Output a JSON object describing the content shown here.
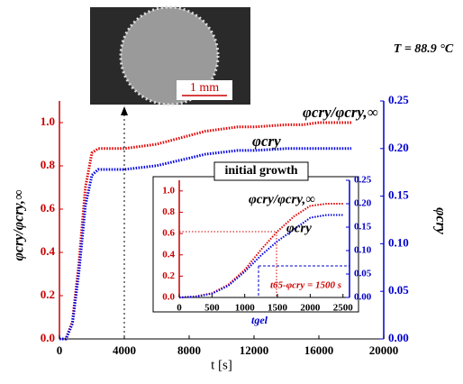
{
  "chart_data": [
    {
      "type": "line",
      "xlabel": "t [s]",
      "ylabel": "φcry/φcry,∞",
      "y2label": "φcry",
      "annotations": [
        "T = 88.9 °C",
        "1 mm"
      ],
      "x": [
        0,
        400,
        800,
        1200,
        1600,
        2000,
        2400,
        3000,
        4000,
        5000,
        6000,
        7000,
        8000,
        9000,
        10000,
        11000,
        12000,
        13000,
        14000,
        15000,
        16000,
        17000,
        18000
      ],
      "series": [
        {
          "name": "φcry/φcry,∞",
          "color": "#e00000",
          "axis": "y",
          "values": [
            0,
            0,
            0.08,
            0.35,
            0.7,
            0.86,
            0.88,
            0.88,
            0.88,
            0.89,
            0.9,
            0.92,
            0.94,
            0.96,
            0.97,
            0.98,
            0.98,
            0.985,
            0.99,
            0.99,
            1.0,
            1.0,
            1.0
          ]
        },
        {
          "name": "φcry",
          "color": "#0000e0",
          "axis": "y2",
          "values": [
            0,
            0,
            0.016,
            0.07,
            0.14,
            0.172,
            0.178,
            0.178,
            0.178,
            0.18,
            0.182,
            0.186,
            0.19,
            0.194,
            0.196,
            0.198,
            0.198,
            0.199,
            0.2,
            0.2,
            0.2,
            0.2,
            0.2
          ]
        }
      ],
      "xlim": [
        0,
        20000
      ],
      "xticks": [
        0,
        4000,
        8000,
        12000,
        16000,
        20000
      ],
      "ylim": [
        0,
        1.1
      ],
      "yticks": [
        {
          "value": 0,
          "label": "0.0"
        },
        {
          "value": 0.2,
          "label": "0.2"
        },
        {
          "value": 0.4,
          "label": "0.4"
        },
        {
          "value": 0.6,
          "label": "0.6"
        },
        {
          "value": 0.8,
          "label": "0.8"
        },
        {
          "value": 1,
          "label": "1.0"
        }
      ],
      "y2lim": [
        0,
        0.25
      ],
      "y2ticks": [
        {
          "value": 0,
          "label": "0.00"
        },
        {
          "value": 0.05,
          "label": "0.05"
        },
        {
          "value": 0.1,
          "label": "0.10"
        },
        {
          "value": 0.15,
          "label": "0.15"
        },
        {
          "value": 0.2,
          "label": "0.20"
        },
        {
          "value": 0.25,
          "label": "0.25"
        }
      ]
    },
    {
      "type": "line",
      "title": "initial growth",
      "annotations": [
        "t65-φcry = 1500 s",
        "tgel"
      ],
      "x": [
        0,
        250,
        500,
        750,
        1000,
        1250,
        1500,
        1750,
        2000,
        2250,
        2500
      ],
      "series": [
        {
          "name": "φcry/φcry,∞",
          "color": "#e00000",
          "axis": "y",
          "values": [
            0,
            0.01,
            0.04,
            0.12,
            0.26,
            0.45,
            0.62,
            0.76,
            0.86,
            0.88,
            0.88
          ]
        },
        {
          "name": "φcry",
          "color": "#0000e0",
          "axis": "y2",
          "values": [
            0,
            0.002,
            0.008,
            0.025,
            0.055,
            0.09,
            0.12,
            0.145,
            0.17,
            0.176,
            0.176
          ]
        }
      ],
      "xlim": [
        0,
        2600
      ],
      "xticks": [
        0,
        500,
        1000,
        1500,
        2000,
        2500
      ],
      "ylim": [
        0,
        1.1
      ],
      "yticks": [
        {
          "value": 0,
          "label": "0.0"
        },
        {
          "value": 0.2,
          "label": "0.2"
        },
        {
          "value": 0.4,
          "label": "0.4"
        },
        {
          "value": 0.6,
          "label": "0.6"
        },
        {
          "value": 0.8,
          "label": "0.8"
        },
        {
          "value": 1,
          "label": "1.0"
        }
      ],
      "y2lim": [
        0,
        0.25
      ],
      "y2ticks": [
        {
          "value": 0,
          "label": "0.00"
        },
        {
          "value": 0.05,
          "label": "0.05"
        },
        {
          "value": 0.1,
          "label": "0.10"
        },
        {
          "value": 0.15,
          "label": "0.15"
        },
        {
          "value": 0.2,
          "label": "0.20"
        },
        {
          "value": 0.25,
          "label": "0.25"
        }
      ]
    }
  ]
}
